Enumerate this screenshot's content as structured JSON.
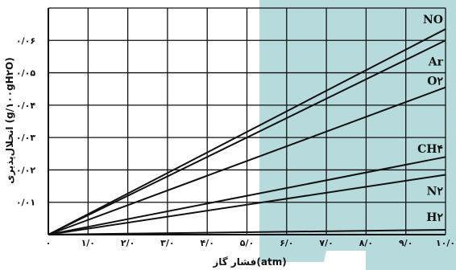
{
  "colors": {
    "background": "#ffffff",
    "decor_teal": "#b7dbdc",
    "grid": "#111111",
    "line": "#111111"
  },
  "chart_data": {
    "type": "line",
    "title": "",
    "xlabel": "فشار گاز(atm)",
    "ylabel": "انحلال‌پذیری (g/۱۰۰gH۲O)",
    "xlim": [
      0,
      10
    ],
    "ylim": [
      0,
      0.07
    ],
    "grid": true,
    "legend": "labels at line ends (right)",
    "x_tick_labels": [
      "۰",
      "۱/۰",
      "۲/۰",
      "۳/۰",
      "۴/۰",
      "۵/۰",
      "۶/۰",
      "۷/۰",
      "۸/۰",
      "۹/۰",
      "۱۰/۰"
    ],
    "y_tick_labels": [
      "۰/۰۱",
      "۰/۰۲",
      "۰/۰۳",
      "۰/۰۴",
      "۰/۰۵",
      "۰/۰۶"
    ],
    "series": [
      {
        "name": "NO",
        "x": [
          0,
          10
        ],
        "y": [
          0,
          0.0635
        ],
        "label_y": 0.0665
      },
      {
        "name": "Ar",
        "x": [
          0,
          10
        ],
        "y": [
          0,
          0.06
        ],
        "label_y": 0.0535
      },
      {
        "name": "O۲",
        "x": [
          0,
          10
        ],
        "y": [
          0,
          0.0455
        ],
        "label_y": 0.0475
      },
      {
        "name": "CH۴",
        "x": [
          0,
          10
        ],
        "y": [
          0,
          0.024
        ],
        "label_y": 0.0265
      },
      {
        "name": "N۲",
        "x": [
          0,
          10
        ],
        "y": [
          0,
          0.0185
        ],
        "label_y": 0.0135
      },
      {
        "name": "H۲",
        "x": [
          0,
          10
        ],
        "y": [
          0,
          0.0015
        ],
        "label_y": 0.0055
      }
    ]
  }
}
